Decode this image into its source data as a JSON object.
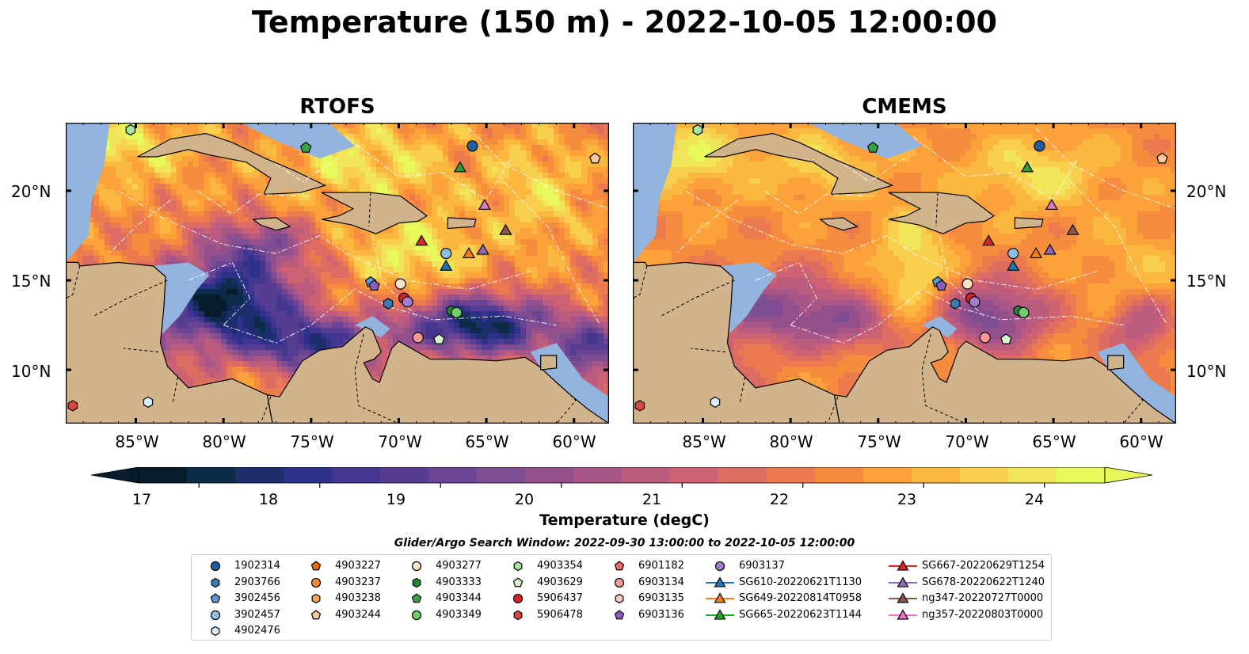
{
  "title": "Temperature (150 m) - 2022-10-05 12:00:00",
  "panels": [
    {
      "title": "RTOFS",
      "model": "rtofs"
    },
    {
      "title": "CMEMS",
      "model": "cmems"
    }
  ],
  "lat_labels": [
    "20°N",
    "15°N",
    "10°N"
  ],
  "lon_labels": [
    "85°W",
    "80°W",
    "75°W",
    "70°W",
    "65°W",
    "60°W"
  ],
  "colorbar": {
    "label": "Temperature (degC)",
    "ticks": [
      "17",
      "18",
      "19",
      "20",
      "21",
      "22",
      "23",
      "24"
    ],
    "range": [
      16.5,
      24.5
    ],
    "colors": [
      "#061c2c",
      "#0b2b48",
      "#1c2f6c",
      "#2e3189",
      "#42368f",
      "#573d92",
      "#6b4593",
      "#7f4d92",
      "#944f8d",
      "#a75687",
      "#bb5b7e",
      "#cd6272",
      "#dd6c62",
      "#eb7a4f",
      "#f68d3e",
      "#fba23a",
      "#fbb841",
      "#f8cf4e",
      "#f1e65a",
      "#e7fa5a"
    ]
  },
  "legend": {
    "title": "Glider/Argo Search Window: 2022-09-30 13:00:00 to 2022-10-05 12:00:00",
    "columns": [
      [
        {
          "label": "1902314",
          "shape": "circle",
          "color": "#1f5fa0"
        },
        {
          "label": "2903766",
          "shape": "hexagon",
          "color": "#3a7ab8"
        },
        {
          "label": "3902456",
          "shape": "pentagon",
          "color": "#5b9bd5"
        },
        {
          "label": "3902457",
          "shape": "circle",
          "color": "#8cc0e6"
        },
        {
          "label": "4902476",
          "shape": "hexagon",
          "color": "#d9ecf8"
        }
      ],
      [
        {
          "label": "4903227",
          "shape": "pentagon",
          "color": "#e66a0a"
        },
        {
          "label": "4903237",
          "shape": "circle",
          "color": "#f58b3a"
        },
        {
          "label": "4903238",
          "shape": "hexagon",
          "color": "#f7a65e"
        },
        {
          "label": "4903244",
          "shape": "pentagon",
          "color": "#fbc99c"
        }
      ],
      [
        {
          "label": "4903277",
          "shape": "circle",
          "color": "#fde3c8"
        },
        {
          "label": "4903333",
          "shape": "hexagon",
          "color": "#1e8a2e"
        },
        {
          "label": "4903344",
          "shape": "pentagon",
          "color": "#37a345"
        },
        {
          "label": "4903349",
          "shape": "circle",
          "color": "#6fcf6a"
        }
      ],
      [
        {
          "label": "4903354",
          "shape": "hexagon",
          "color": "#a8e6a0"
        },
        {
          "label": "4903629",
          "shape": "pentagon",
          "color": "#d8f5cc"
        },
        {
          "label": "5906437",
          "shape": "circle",
          "color": "#d62424"
        },
        {
          "label": "5906478",
          "shape": "hexagon",
          "color": "#e04545"
        }
      ],
      [
        {
          "label": "6901182",
          "shape": "pentagon",
          "color": "#ef6b6b"
        },
        {
          "label": "6903134",
          "shape": "circle",
          "color": "#f59a96"
        },
        {
          "label": "6903135",
          "shape": "hexagon",
          "color": "#fbc7c3"
        },
        {
          "label": "6903136",
          "shape": "pentagon",
          "color": "#8a5cc0"
        }
      ],
      [
        {
          "label": "6903137",
          "shape": "circle",
          "color": "#a57dd0"
        },
        {
          "label": "SG610-20220621T1130",
          "shape": "line-triangle",
          "color": "#1f77b4"
        },
        {
          "label": "SG649-20220814T0958",
          "shape": "line-triangle",
          "color": "#ff7f0e"
        },
        {
          "label": "SG665-20220623T1144",
          "shape": "line-triangle",
          "color": "#2ca02c"
        }
      ],
      [
        {
          "label": "SG667-20220629T1254",
          "shape": "line-triangle",
          "color": "#d62728"
        },
        {
          "label": "SG678-20220622T1240",
          "shape": "line-triangle",
          "color": "#9467bd"
        },
        {
          "label": "ng347-20220727T0000",
          "shape": "line-triangle",
          "color": "#8c564b"
        },
        {
          "label": "ng357-20220803T0000",
          "shape": "line-triangle",
          "color": "#e377c2"
        }
      ]
    ]
  },
  "markers": [
    {
      "id": "1902314",
      "lon": -65.8,
      "lat": 22.5
    },
    {
      "id": "4903344",
      "lon": -75.3,
      "lat": 22.4
    },
    {
      "id": "4903354",
      "lon": -85.3,
      "lat": 23.4
    },
    {
      "id": "4903244",
      "lon": -58.8,
      "lat": 21.8
    },
    {
      "id": "3902457",
      "lon": -67.3,
      "lat": 16.5
    },
    {
      "id": "3902456",
      "lon": -71.6,
      "lat": 14.9
    },
    {
      "id": "6903136",
      "lon": -71.4,
      "lat": 14.7
    },
    {
      "id": "2903766",
      "lon": -70.6,
      "lat": 13.7
    },
    {
      "id": "4903277",
      "lon": -69.9,
      "lat": 14.8
    },
    {
      "id": "5906437",
      "lon": -69.7,
      "lat": 14.0
    },
    {
      "id": "6903137",
      "lon": -69.5,
      "lat": 13.8
    },
    {
      "id": "4903333",
      "lon": -67.0,
      "lat": 13.3
    },
    {
      "id": "4903349",
      "lon": -66.7,
      "lat": 13.2
    },
    {
      "id": "6903134",
      "lon": -68.9,
      "lat": 11.8
    },
    {
      "id": "4903629",
      "lon": -67.7,
      "lat": 11.7
    },
    {
      "id": "5906478",
      "lon": -88.6,
      "lat": 8.0
    },
    {
      "id": "4902476",
      "lon": -84.3,
      "lat": 8.2
    },
    {
      "id": "SG665-20220623T1144",
      "lon": -66.5,
      "lat": 21.3
    },
    {
      "id": "ng357-20220803T0000",
      "lon": -65.1,
      "lat": 19.2
    },
    {
      "id": "ng347-20220727T0000",
      "lon": -63.9,
      "lat": 17.8
    },
    {
      "id": "SG667-20220629T1254",
      "lon": -68.7,
      "lat": 17.2
    },
    {
      "id": "SG649-20220814T0958",
      "lon": -66.0,
      "lat": 16.5
    },
    {
      "id": "SG678-20220622T1240",
      "lon": -65.2,
      "lat": 16.7
    },
    {
      "id": "SG610-20220621T1130",
      "lon": -67.3,
      "lat": 15.8
    }
  ]
}
